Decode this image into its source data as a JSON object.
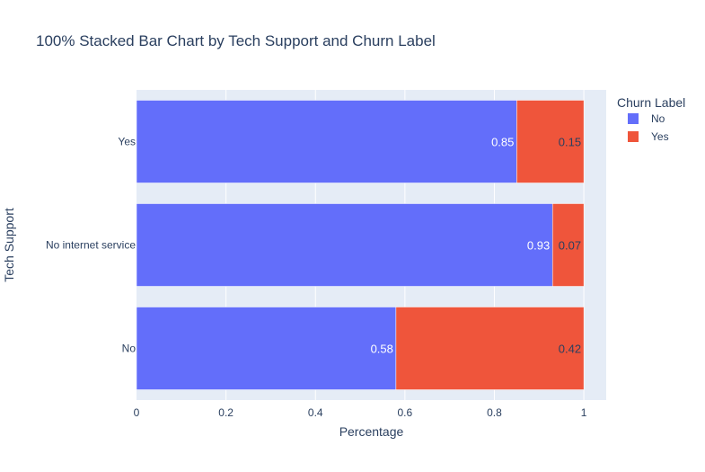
{
  "chart_data": {
    "type": "bar",
    "orientation": "horizontal",
    "stacked": "percent",
    "title": "100% Stacked Bar Chart by Tech Support and Churn Label",
    "xlabel": "Percentage",
    "ylabel": "Tech Support",
    "xlim": [
      0,
      1.05
    ],
    "xticks": [
      0,
      0.2,
      0.4,
      0.6,
      0.8,
      1
    ],
    "xtick_labels": [
      "0",
      "0.2",
      "0.4",
      "0.6",
      "0.8",
      "1"
    ],
    "categories": [
      "No",
      "No internet service",
      "Yes"
    ],
    "series": [
      {
        "name": "No",
        "color": "#636efa",
        "values": [
          0.58,
          0.93,
          0.85
        ],
        "labels": [
          "0.58",
          "0.93",
          "0.85"
        ]
      },
      {
        "name": "Yes",
        "color": "#ef553b",
        "values": [
          0.42,
          0.07,
          0.15
        ],
        "labels": [
          "0.42",
          "0.07",
          "0.15"
        ]
      }
    ],
    "legend": {
      "title": "Churn Label",
      "placement": "top-right"
    },
    "grid": true,
    "plot_background": "#e5ecf6"
  }
}
